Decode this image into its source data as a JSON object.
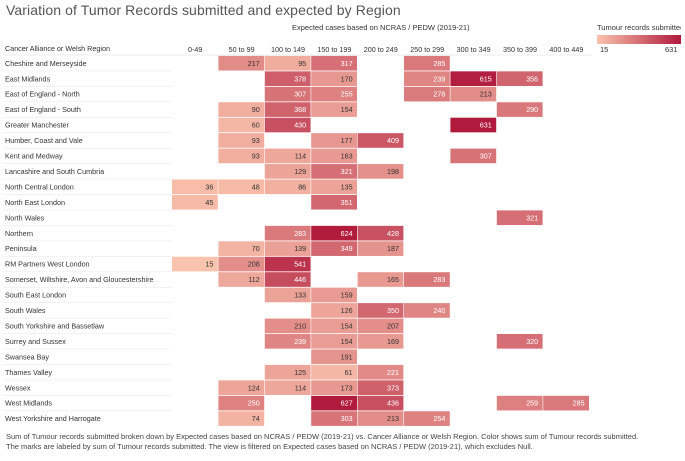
{
  "page": {
    "title": "Variation of Tumor Records submitted and expected by Region",
    "row_header": "Cancer Alliance or Welsh Region",
    "column_header": "Expected cases based on NCRAS / PEDW (2019-21)",
    "caption": "Sum of Tumour records submitted broken down by Expected cases based on NCRAS / PEDW (2019-21) vs. Cancer Alliance or Welsh Region.  Color shows sum of Tumour records submitted.  The marks are labeled by sum of Tumour records submitted. The view is filtered on Expected cases based on NCRAS / PEDW (2019-21), which excludes Null."
  },
  "legend": {
    "title": "Tumour records submitted",
    "min_label": "15",
    "max_label": "631",
    "color_low": "#fac3ad",
    "color_high": "#b01a3c"
  },
  "chart_data": {
    "type": "heatmap",
    "title": "Variation of Tumor Records submitted and expected by Region",
    "xlabel": "Expected cases based on NCRAS / PEDW (2019-21)",
    "ylabel": "Cancer Alliance or Welsh Region",
    "color_measure": "Tumour records submitted",
    "color_range": [
      15,
      631
    ],
    "columns": [
      "0-49",
      "50 to 99",
      "100 to 149",
      "150 to 199",
      "200 to 249",
      "250 to 299",
      "300 to 349",
      "350 to 399",
      "400 to 449"
    ],
    "rows": [
      "Cheshire and Merseyside",
      "East Midlands",
      "East of England - North",
      "East of England - South",
      "Greater Manchester",
      "Humber, Coast and Vale",
      "Kent and Medway",
      "Lancashire and South Cumbria",
      "North Central London",
      "North East London",
      "North Wales",
      "Northern",
      "Peninsula",
      "RM Partners West London",
      "Somerset, Wiltshire, Avon and Gloucestershire",
      "South East London",
      "South Wales",
      "South Yorkshire and Bassetlaw",
      "Surrey and Sussex",
      "Swansea Bay",
      "Thames Valley",
      "Wessex",
      "West Midlands",
      "West Yorkshire and Harrogate"
    ],
    "values": [
      [
        null,
        217,
        95,
        317,
        null,
        285,
        null,
        null,
        null
      ],
      [
        null,
        null,
        378,
        170,
        null,
        239,
        615,
        356,
        null
      ],
      [
        null,
        null,
        307,
        255,
        null,
        278,
        213,
        null,
        null
      ],
      [
        null,
        90,
        368,
        154,
        null,
        null,
        null,
        290,
        null
      ],
      [
        null,
        60,
        430,
        null,
        null,
        null,
        631,
        null,
        null
      ],
      [
        null,
        93,
        null,
        177,
        409,
        null,
        null,
        null,
        null
      ],
      [
        null,
        93,
        114,
        163,
        null,
        null,
        307,
        null,
        null
      ],
      [
        null,
        null,
        129,
        321,
        198,
        null,
        null,
        null,
        null
      ],
      [
        36,
        48,
        86,
        135,
        null,
        null,
        null,
        null,
        null
      ],
      [
        45,
        null,
        null,
        351,
        null,
        null,
        null,
        null,
        null
      ],
      [
        null,
        null,
        null,
        null,
        null,
        null,
        null,
        321,
        null
      ],
      [
        null,
        null,
        283,
        624,
        428,
        null,
        null,
        null,
        null
      ],
      [
        null,
        70,
        139,
        349,
        187,
        null,
        null,
        null,
        null
      ],
      [
        15,
        208,
        541,
        null,
        null,
        null,
        null,
        null,
        null
      ],
      [
        null,
        112,
        446,
        null,
        165,
        283,
        null,
        null,
        null
      ],
      [
        null,
        null,
        133,
        159,
        null,
        null,
        null,
        null,
        null
      ],
      [
        null,
        null,
        null,
        126,
        350,
        240,
        null,
        null,
        null
      ],
      [
        null,
        null,
        210,
        154,
        207,
        null,
        null,
        null,
        null
      ],
      [
        null,
        null,
        239,
        154,
        169,
        null,
        null,
        320,
        null
      ],
      [
        null,
        null,
        null,
        191,
        null,
        null,
        null,
        null,
        null
      ],
      [
        null,
        null,
        125,
        61,
        221,
        null,
        null,
        null,
        null
      ],
      [
        null,
        124,
        114,
        173,
        373,
        null,
        null,
        null,
        null
      ],
      [
        null,
        250,
        null,
        627,
        436,
        null,
        null,
        259,
        285
      ],
      [
        null,
        74,
        null,
        303,
        213,
        254,
        null,
        null,
        null
      ]
    ]
  }
}
